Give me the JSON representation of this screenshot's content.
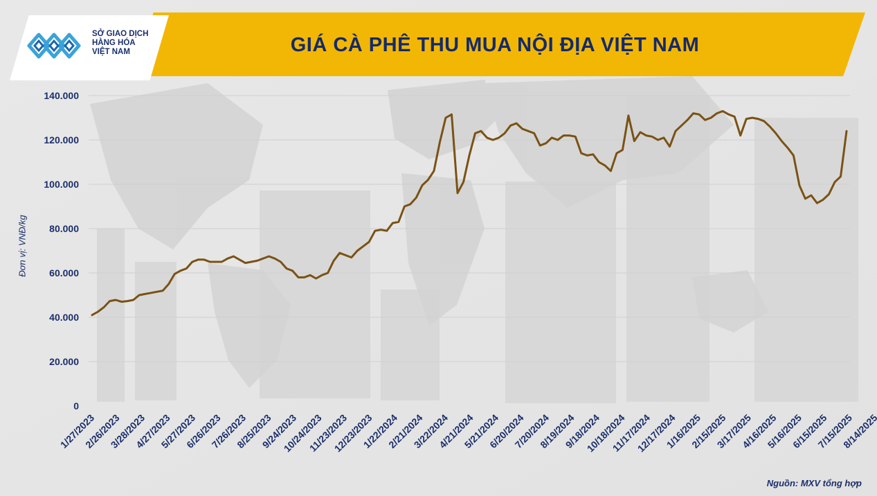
{
  "header": {
    "title": "GIÁ CÀ PHÊ THU MUA NỘI ĐỊA VIỆT NAM",
    "logo_lines": [
      "SỞ GIAO DỊCH",
      "HÀNG HÓA",
      "VIỆT NAM"
    ],
    "logo_icon": "mxv-logo-icon"
  },
  "footer": {
    "source": "Nguồn: MXV tổng hợp"
  },
  "colors": {
    "line": "#7a5214",
    "banner": "#f2b705",
    "text": "#1a2f6b",
    "logo": "#3aa3d8"
  },
  "chart_data": {
    "type": "line",
    "title": "GIÁ CÀ PHÊ THU MUA NỘI ĐỊA VIỆT NAM",
    "ylabel": "Đơn vị: VNĐ/kg",
    "xlabel": "",
    "ylim": [
      0,
      140000
    ],
    "yticks": [
      "0",
      "20.000",
      "40.000",
      "60.000",
      "80.000",
      "100.000",
      "120.000",
      "140.000"
    ],
    "yticks_values": [
      0,
      20000,
      40000,
      60000,
      80000,
      100000,
      120000,
      140000
    ],
    "grid": true,
    "x_tick_labels": [
      "1/27/2023",
      "2/26/2023",
      "3/28/2023",
      "4/27/2023",
      "5/27/2023",
      "6/26/2023",
      "7/26/2023",
      "8/25/2023",
      "9/24/2023",
      "10/24/2023",
      "11/23/2023",
      "12/23/2023",
      "1/22/2024",
      "2/21/2024",
      "3/22/2024",
      "4/21/2024",
      "5/21/2024",
      "6/20/2024",
      "7/20/2024",
      "8/19/2024",
      "9/18/2024",
      "10/18/2024",
      "11/17/2024",
      "12/17/2024",
      "1/16/2025",
      "2/15/2025",
      "3/17/2025",
      "4/16/2025",
      "5/16/2025",
      "6/15/2025",
      "7/15/2025",
      "8/14/2025"
    ],
    "x_start": "1/27/2023",
    "x_step_days": 7,
    "series": [
      {
        "values": [
          41000,
          42500,
          44500,
          47300,
          47800,
          47000,
          47300,
          47800,
          50000,
          50500,
          51000,
          51500,
          52000,
          55000,
          59500,
          61000,
          62000,
          65000,
          66000,
          66000,
          65000,
          65000,
          65000,
          66500,
          67500,
          66000,
          64500,
          65000,
          65500,
          66500,
          67500,
          66500,
          65000,
          62000,
          61000,
          58000,
          58000,
          59000,
          57500,
          59000,
          60000,
          65500,
          69000,
          68000,
          67000,
          70000,
          72000,
          74000,
          79000,
          79500,
          79000,
          82500,
          83000,
          90000,
          91000,
          94000,
          99500,
          102000,
          106000,
          119000,
          130000,
          131500,
          96000,
          101000,
          113000,
          123000,
          124000,
          121000,
          120000,
          121000,
          123000,
          126500,
          127500,
          125000,
          124000,
          123000,
          117500,
          118500,
          121000,
          120000,
          122000,
          122000,
          121500,
          114000,
          113000,
          113500,
          110000,
          108500,
          106000,
          114000,
          115500,
          131000,
          119500,
          123500,
          122000,
          121500,
          120000,
          121000,
          117000,
          124000,
          126500,
          129000,
          132000,
          131500,
          129000,
          130000,
          132000,
          133000,
          131500,
          130500,
          122000,
          129500,
          130000,
          129500,
          128500,
          126000,
          123000,
          119500,
          116500,
          113000,
          99500,
          93500,
          95000,
          91500,
          93000,
          95500,
          101000,
          103500,
          124000
        ]
      }
    ]
  }
}
